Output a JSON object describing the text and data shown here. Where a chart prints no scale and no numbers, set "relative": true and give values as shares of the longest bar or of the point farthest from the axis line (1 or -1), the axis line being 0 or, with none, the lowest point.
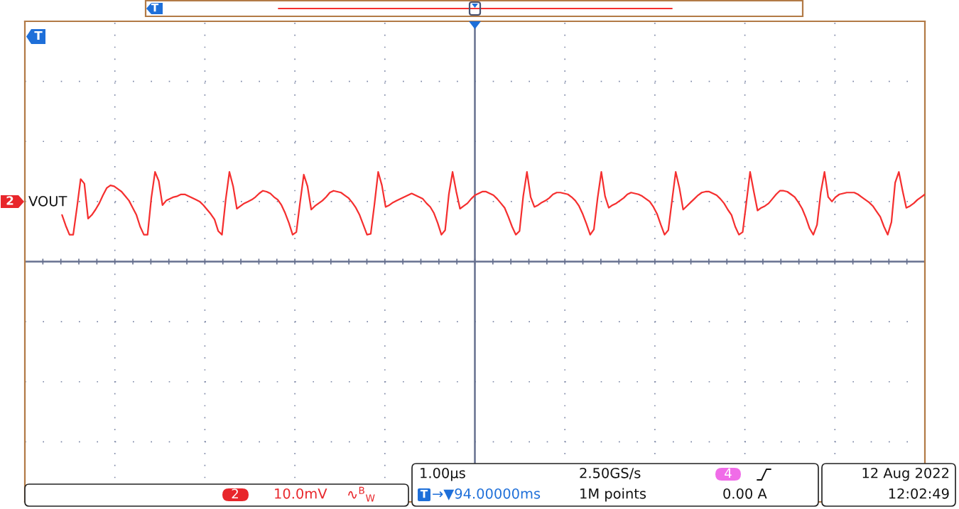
{
  "chart_data": {
    "type": "line",
    "relative": true,
    "grid": true,
    "line_style": "solid",
    "categories": [
      null,
      null,
      null,
      null,
      null,
      null,
      null,
      null,
      null,
      null,
      null,
      null,
      null,
      null,
      null,
      null,
      null,
      null,
      null,
      null,
      null,
      null,
      null,
      null,
      null,
      null,
      null,
      null,
      null,
      null,
      null,
      null,
      null,
      null,
      null,
      null,
      null,
      null,
      null,
      null,
      null,
      null,
      null,
      null,
      null,
      null,
      null,
      null,
      null,
      null,
      null,
      null,
      null,
      null,
      null,
      null,
      null,
      null,
      null,
      null,
      null,
      null,
      null,
      null,
      null,
      null,
      null,
      null,
      null,
      null,
      null,
      null,
      null,
      null,
      null,
      null,
      null,
      null,
      null,
      null,
      null,
      null,
      null,
      null,
      null,
      null,
      null,
      null,
      null,
      null,
      null,
      null,
      null,
      null,
      null,
      null,
      null,
      null,
      null,
      null,
      null,
      null,
      null,
      null,
      null,
      null,
      null,
      null,
      null,
      null,
      null,
      null,
      null,
      null,
      null,
      null,
      null,
      null,
      null,
      null,
      null,
      null,
      null,
      null,
      null,
      null,
      null,
      null,
      null,
      null,
      null,
      null,
      null,
      null,
      null,
      null,
      null,
      null,
      null,
      null,
      null,
      null,
      null,
      null,
      null,
      null,
      null,
      null,
      null,
      null,
      null,
      null,
      null,
      null,
      null,
      null,
      null,
      null,
      null,
      null,
      null,
      null,
      null,
      null,
      null,
      null,
      null,
      null,
      null,
      null,
      null,
      null,
      null,
      null,
      null,
      null,
      null,
      null,
      null,
      null,
      null,
      null,
      null,
      null,
      null,
      null,
      null,
      null,
      null,
      null,
      null,
      null,
      null,
      null,
      null,
      null,
      null,
      null,
      null,
      null,
      null,
      null,
      null,
      null,
      null,
      null,
      null,
      null,
      null,
      null,
      null,
      null,
      null,
      null,
      null,
      null,
      null,
      null,
      null,
      null,
      null,
      null,
      null,
      null,
      null,
      null,
      null,
      null,
      null,
      null,
      null,
      null,
      null,
      null,
      null,
      null,
      null,
      null,
      null,
      null,
      null,
      null,
      null
    ],
    "series": [
      {
        "name": "VOUT",
        "color": "#f52f2f",
        "values": [
          null,
          null,
          null,
          null,
          null,
          null,
          null,
          null,
          null,
          null,
          0.52,
          0.4,
          0.3,
          0.3,
          0.6,
          0.92,
          0.87,
          0.48,
          0.52,
          0.58,
          0.65,
          0.74,
          0.82,
          0.85,
          0.84,
          0.81,
          0.78,
          0.73,
          0.68,
          0.6,
          0.52,
          0.39,
          0.3,
          0.3,
          0.71,
          1.0,
          0.9,
          0.63,
          0.68,
          0.7,
          0.72,
          0.73,
          0.75,
          0.75,
          0.73,
          0.71,
          0.69,
          0.67,
          0.63,
          0.58,
          0.53,
          0.47,
          0.34,
          0.3,
          0.69,
          1.0,
          0.84,
          0.59,
          0.62,
          0.65,
          0.67,
          0.69,
          0.72,
          0.76,
          0.79,
          0.78,
          0.76,
          0.72,
          0.69,
          0.63,
          0.54,
          0.43,
          0.3,
          0.33,
          0.66,
          0.97,
          0.84,
          0.58,
          0.62,
          0.65,
          0.68,
          0.72,
          0.77,
          0.79,
          0.78,
          0.77,
          0.74,
          0.71,
          0.66,
          0.6,
          0.52,
          0.41,
          0.3,
          0.31,
          0.64,
          1.0,
          0.85,
          0.61,
          0.63,
          0.66,
          0.68,
          0.7,
          0.72,
          0.74,
          0.76,
          0.74,
          0.72,
          0.7,
          0.65,
          0.61,
          0.54,
          0.43,
          0.3,
          0.35,
          0.75,
          1.0,
          0.78,
          0.59,
          0.62,
          0.65,
          0.7,
          0.74,
          0.76,
          0.78,
          0.78,
          0.76,
          0.74,
          0.7,
          0.65,
          0.6,
          0.5,
          0.39,
          0.3,
          0.34,
          0.73,
          1.0,
          0.72,
          0.61,
          0.63,
          0.66,
          0.68,
          0.71,
          0.75,
          0.77,
          0.77,
          0.76,
          0.75,
          0.72,
          0.68,
          0.62,
          0.53,
          0.42,
          0.3,
          0.36,
          0.71,
          1.0,
          0.73,
          0.6,
          0.63,
          0.65,
          0.68,
          0.71,
          0.75,
          0.77,
          0.76,
          0.75,
          0.73,
          0.7,
          0.67,
          0.61,
          0.53,
          0.41,
          0.3,
          0.35,
          0.68,
          1.0,
          0.82,
          0.58,
          0.62,
          0.66,
          0.7,
          0.74,
          0.77,
          0.78,
          0.78,
          0.76,
          0.74,
          0.7,
          0.65,
          0.58,
          0.52,
          0.39,
          0.3,
          0.33,
          0.66,
          1.0,
          0.78,
          0.57,
          0.6,
          0.62,
          0.65,
          0.7,
          0.75,
          0.79,
          0.79,
          0.78,
          0.75,
          0.72,
          0.66,
          0.59,
          0.49,
          0.37,
          0.3,
          0.41,
          0.77,
          1.0,
          0.72,
          0.67,
          0.72,
          0.75,
          0.76,
          0.77,
          0.77,
          0.77,
          0.75,
          0.72,
          0.69,
          0.66,
          0.62,
          0.56,
          0.5,
          0.39,
          0.3,
          0.44,
          0.88,
          1.0,
          0.79,
          0.6,
          0.62,
          0.65,
          0.69,
          0.72,
          0.75
        ]
      }
    ],
    "annotations": [
      "T",
      "T",
      "2",
      "1.00µs",
      "2.50GS/s",
      "4",
      "12 Aug 2022",
      "2",
      "10.0mV",
      "∿$^{B}$$_{W}$",
      "T",
      "→▼94.00000ms",
      "1M points",
      "0.00 A",
      "12:02:49"
    ]
  }
}
